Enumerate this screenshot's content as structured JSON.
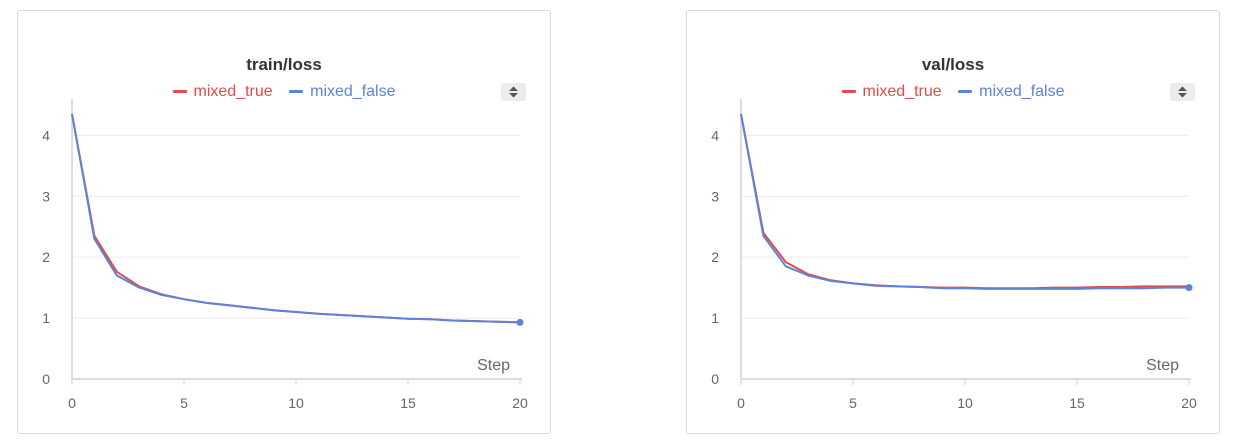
{
  "chart_data": [
    {
      "type": "line",
      "title": "train/loss",
      "xlabel": "Step",
      "ylabel": "",
      "xlim": [
        0,
        20
      ],
      "ylim": [
        0,
        4.4
      ],
      "x_ticks": [
        0,
        5,
        10,
        15,
        20
      ],
      "y_ticks": [
        0,
        1,
        2,
        3,
        4
      ],
      "grid": true,
      "legend_position": "top-center",
      "x": [
        0,
        1,
        2,
        3,
        4,
        5,
        6,
        7,
        8,
        9,
        10,
        11,
        12,
        13,
        14,
        15,
        16,
        17,
        18,
        19,
        20
      ],
      "series": [
        {
          "name": "mixed_true",
          "color": "#e24b4b",
          "values": [
            4.35,
            2.35,
            1.76,
            1.52,
            1.39,
            1.31,
            1.25,
            1.21,
            1.17,
            1.13,
            1.1,
            1.07,
            1.05,
            1.03,
            1.01,
            0.99,
            0.98,
            0.96,
            0.95,
            0.94,
            0.93
          ]
        },
        {
          "name": "mixed_false",
          "color": "#5b84d8",
          "values": [
            4.35,
            2.3,
            1.7,
            1.5,
            1.38,
            1.31,
            1.25,
            1.21,
            1.17,
            1.13,
            1.1,
            1.07,
            1.05,
            1.03,
            1.01,
            0.99,
            0.98,
            0.96,
            0.95,
            0.94,
            0.93
          ]
        }
      ]
    },
    {
      "type": "line",
      "title": "val/loss",
      "xlabel": "Step",
      "ylabel": "",
      "xlim": [
        0,
        20
      ],
      "ylim": [
        0,
        4.4
      ],
      "x_ticks": [
        0,
        5,
        10,
        15,
        20
      ],
      "y_ticks": [
        0,
        1,
        2,
        3,
        4
      ],
      "grid": true,
      "legend_position": "top-center",
      "x": [
        0,
        1,
        2,
        3,
        4,
        5,
        6,
        7,
        8,
        9,
        10,
        11,
        12,
        13,
        14,
        15,
        16,
        17,
        18,
        19,
        20
      ],
      "series": [
        {
          "name": "mixed_true",
          "color": "#e24b4b",
          "values": [
            4.35,
            2.4,
            1.92,
            1.72,
            1.62,
            1.57,
            1.54,
            1.52,
            1.51,
            1.5,
            1.5,
            1.49,
            1.49,
            1.49,
            1.5,
            1.5,
            1.51,
            1.51,
            1.52,
            1.52,
            1.52
          ]
        },
        {
          "name": "mixed_false",
          "color": "#5b84d8",
          "values": [
            4.35,
            2.35,
            1.85,
            1.7,
            1.61,
            1.57,
            1.53,
            1.52,
            1.51,
            1.49,
            1.49,
            1.48,
            1.48,
            1.48,
            1.48,
            1.48,
            1.49,
            1.49,
            1.49,
            1.5,
            1.5
          ]
        }
      ]
    }
  ]
}
